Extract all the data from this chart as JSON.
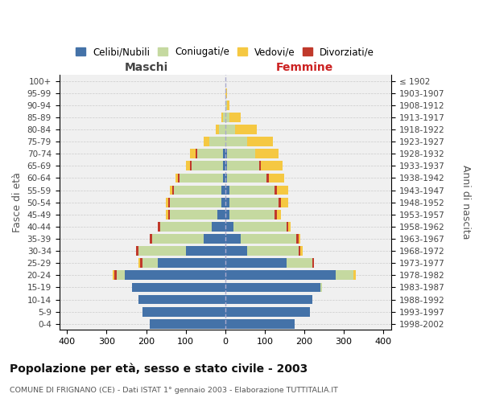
{
  "age_groups": [
    "0-4",
    "5-9",
    "10-14",
    "15-19",
    "20-24",
    "25-29",
    "30-34",
    "35-39",
    "40-44",
    "45-49",
    "50-54",
    "55-59",
    "60-64",
    "65-69",
    "70-74",
    "75-79",
    "80-84",
    "85-89",
    "90-94",
    "95-99",
    "100+"
  ],
  "birth_years": [
    "1998-2002",
    "1993-1997",
    "1988-1992",
    "1983-1987",
    "1978-1982",
    "1973-1977",
    "1968-1972",
    "1963-1967",
    "1958-1962",
    "1953-1957",
    "1948-1952",
    "1943-1947",
    "1938-1942",
    "1933-1937",
    "1928-1932",
    "1923-1927",
    "1918-1922",
    "1913-1917",
    "1908-1912",
    "1903-1907",
    "≤ 1902"
  ],
  "male": {
    "celibi": [
      190,
      210,
      220,
      235,
      255,
      170,
      100,
      55,
      35,
      20,
      10,
      10,
      5,
      5,
      5,
      0,
      0,
      0,
      0,
      0,
      0
    ],
    "coniugati": [
      0,
      0,
      0,
      0,
      20,
      40,
      120,
      130,
      130,
      120,
      130,
      120,
      110,
      80,
      65,
      40,
      15,
      5,
      0,
      0,
      0
    ],
    "vedovi": [
      0,
      0,
      0,
      0,
      5,
      5,
      0,
      0,
      0,
      5,
      5,
      5,
      5,
      10,
      15,
      15,
      10,
      5,
      0,
      0,
      0
    ],
    "divorziati": [
      0,
      0,
      0,
      0,
      5,
      5,
      5,
      5,
      5,
      5,
      5,
      5,
      5,
      5,
      5,
      0,
      0,
      0,
      0,
      0,
      0
    ]
  },
  "female": {
    "nubili": [
      175,
      215,
      220,
      240,
      280,
      155,
      55,
      40,
      20,
      10,
      10,
      10,
      5,
      5,
      5,
      0,
      0,
      0,
      0,
      0,
      0
    ],
    "coniugate": [
      0,
      0,
      0,
      5,
      45,
      65,
      130,
      140,
      135,
      115,
      125,
      115,
      100,
      80,
      70,
      55,
      25,
      10,
      5,
      0,
      0
    ],
    "vedove": [
      0,
      0,
      0,
      0,
      5,
      0,
      5,
      5,
      5,
      10,
      20,
      30,
      40,
      55,
      60,
      65,
      55,
      30,
      5,
      5,
      0
    ],
    "divorziate": [
      0,
      0,
      0,
      0,
      0,
      5,
      5,
      5,
      5,
      5,
      5,
      5,
      5,
      5,
      0,
      0,
      0,
      0,
      0,
      0,
      0
    ]
  },
  "colors": {
    "celibi": "#4472a8",
    "coniugati": "#c5d9a0",
    "vedovi": "#f5c842",
    "divorziati": "#c0392b"
  },
  "title": "Popolazione per età, sesso e stato civile - 2003",
  "subtitle": "COMUNE DI FRIGNANO (CE) - Dati ISTAT 1° gennaio 2003 - Elaborazione TUTTITALIA.IT",
  "xlabel_left": "Maschi",
  "xlabel_right": "Femmine",
  "ylabel_left": "Fasce di età",
  "ylabel_right": "Anni di nascita",
  "xlim": 420,
  "legend_labels": [
    "Celibi/Nubili",
    "Coniugati/e",
    "Vedovi/e",
    "Divorziati/e"
  ],
  "bg_color": "#ffffff",
  "plot_bg": "#f0f0f0",
  "grid_color": "#cccccc"
}
